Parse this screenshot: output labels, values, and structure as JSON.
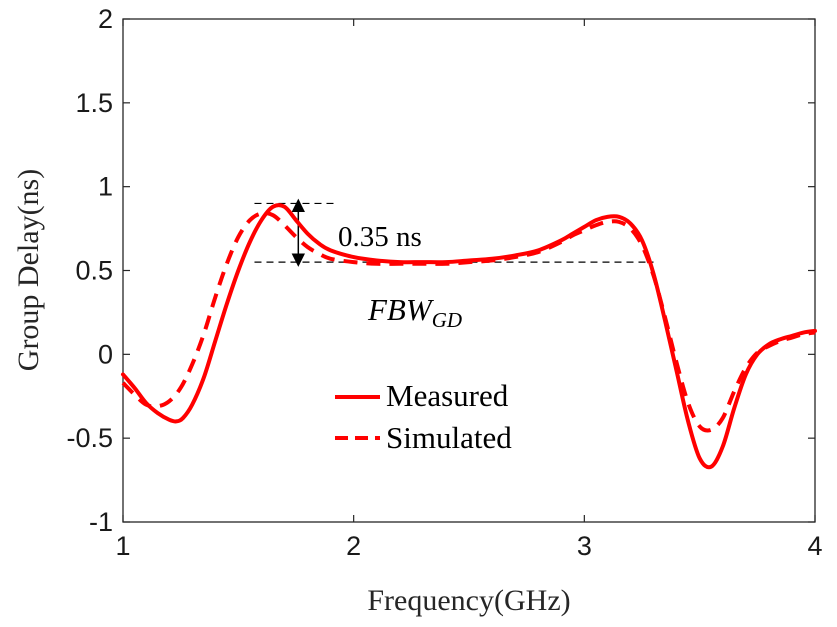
{
  "chart_data": {
    "type": "line",
    "xlabel": "Frequency(GHz)",
    "ylabel": "Group Delay(ns)",
    "xlim": [
      1,
      4
    ],
    "ylim": [
      -1,
      2
    ],
    "xticks": [
      "1",
      "2",
      "3",
      "4"
    ],
    "yticks": [
      "-1",
      "-0.5",
      "0",
      "0.5",
      "1",
      "1.5",
      "2"
    ],
    "grid": false,
    "legend_position": "center",
    "series": [
      {
        "name": "Measured",
        "style": "solid",
        "color": "#ff0000",
        "x": [
          1.0,
          1.05,
          1.1,
          1.15,
          1.2,
          1.23,
          1.26,
          1.3,
          1.35,
          1.4,
          1.45,
          1.5,
          1.55,
          1.6,
          1.65,
          1.7,
          1.75,
          1.8,
          1.85,
          1.9,
          2.0,
          2.1,
          2.2,
          2.3,
          2.4,
          2.5,
          2.6,
          2.7,
          2.8,
          2.9,
          2.95,
          3.0,
          3.05,
          3.1,
          3.15,
          3.2,
          3.25,
          3.3,
          3.35,
          3.4,
          3.45,
          3.5,
          3.55,
          3.6,
          3.65,
          3.7,
          3.75,
          3.8,
          3.85,
          3.9,
          3.95,
          4.0
        ],
        "y": [
          -0.12,
          -0.2,
          -0.29,
          -0.35,
          -0.39,
          -0.4,
          -0.38,
          -0.3,
          -0.14,
          0.08,
          0.3,
          0.5,
          0.67,
          0.8,
          0.88,
          0.88,
          0.8,
          0.72,
          0.66,
          0.62,
          0.58,
          0.56,
          0.55,
          0.55,
          0.55,
          0.56,
          0.57,
          0.59,
          0.62,
          0.68,
          0.72,
          0.76,
          0.8,
          0.82,
          0.82,
          0.78,
          0.68,
          0.48,
          0.2,
          -0.1,
          -0.4,
          -0.62,
          -0.67,
          -0.55,
          -0.32,
          -0.12,
          0.0,
          0.06,
          0.09,
          0.11,
          0.13,
          0.14
        ]
      },
      {
        "name": "Simulated",
        "style": "dashed",
        "color": "#ff0000",
        "x": [
          1.0,
          1.05,
          1.1,
          1.15,
          1.2,
          1.25,
          1.3,
          1.35,
          1.4,
          1.45,
          1.5,
          1.55,
          1.6,
          1.65,
          1.7,
          1.75,
          1.8,
          1.85,
          1.9,
          2.0,
          2.1,
          2.2,
          2.3,
          2.4,
          2.5,
          2.6,
          2.7,
          2.8,
          2.9,
          2.95,
          3.0,
          3.05,
          3.1,
          3.15,
          3.2,
          3.25,
          3.3,
          3.35,
          3.4,
          3.45,
          3.5,
          3.55,
          3.6,
          3.65,
          3.7,
          3.75,
          3.8,
          3.85,
          3.9,
          3.95,
          4.0
        ],
        "y": [
          -0.17,
          -0.24,
          -0.3,
          -0.31,
          -0.28,
          -0.2,
          -0.06,
          0.12,
          0.34,
          0.54,
          0.7,
          0.8,
          0.84,
          0.83,
          0.77,
          0.7,
          0.64,
          0.6,
          0.57,
          0.55,
          0.54,
          0.54,
          0.54,
          0.54,
          0.55,
          0.56,
          0.58,
          0.61,
          0.67,
          0.71,
          0.74,
          0.77,
          0.79,
          0.79,
          0.75,
          0.65,
          0.47,
          0.22,
          -0.05,
          -0.29,
          -0.43,
          -0.45,
          -0.38,
          -0.22,
          -0.08,
          0.01,
          0.05,
          0.08,
          0.1,
          0.12,
          0.13
        ]
      }
    ],
    "annotations": {
      "delta_label": "0.35 ns",
      "delta_top": 0.9,
      "delta_bottom": 0.55,
      "delta_x": 1.76,
      "delta_top_x_range": [
        1.57,
        1.92
      ],
      "delta_bottom_x_range": [
        1.57,
        3.3
      ],
      "fbw_main": "FBW",
      "fbw_sub": "GD"
    }
  }
}
